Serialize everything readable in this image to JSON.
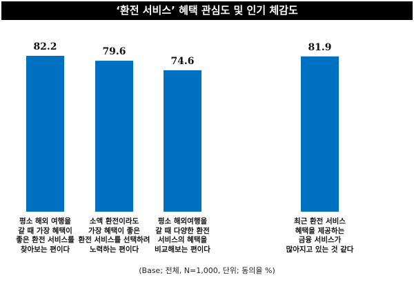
{
  "chart_data": {
    "type": "bar",
    "title": "‘환전 서비스’ 혜택 관심도 및 인기 체감도",
    "categories": [
      [
        "평소 해외 여행을",
        "갈 때 가장 혜택이",
        "좋은 환전 서비스를",
        "찾아보는 편이다"
      ],
      [
        "소액 환전이라도",
        "가장 혜택이 좋은",
        "환전 서비스를 선택하려",
        "노력하는 편이다"
      ],
      [
        "평소 해외여행을",
        "갈 때 다양한 환전",
        "서비스의 혜택을",
        "비교해보는 편이다"
      ],
      [
        "최근 환전 서비스",
        "혜택을 제공하는",
        "금융 서비스가",
        "많아지고 있는 것 같다"
      ]
    ],
    "values": [
      82.2,
      79.6,
      74.6,
      81.9
    ],
    "value_labels": [
      "82.2",
      "79.6",
      "74.6",
      "81.9"
    ],
    "ylim": [
      0,
      100
    ],
    "grid": false,
    "xlabel": "",
    "ylabel": "",
    "bar_color": "#0070c0",
    "note": "(Base; 전체, N=1,000, 단위; 동의율 %)"
  }
}
